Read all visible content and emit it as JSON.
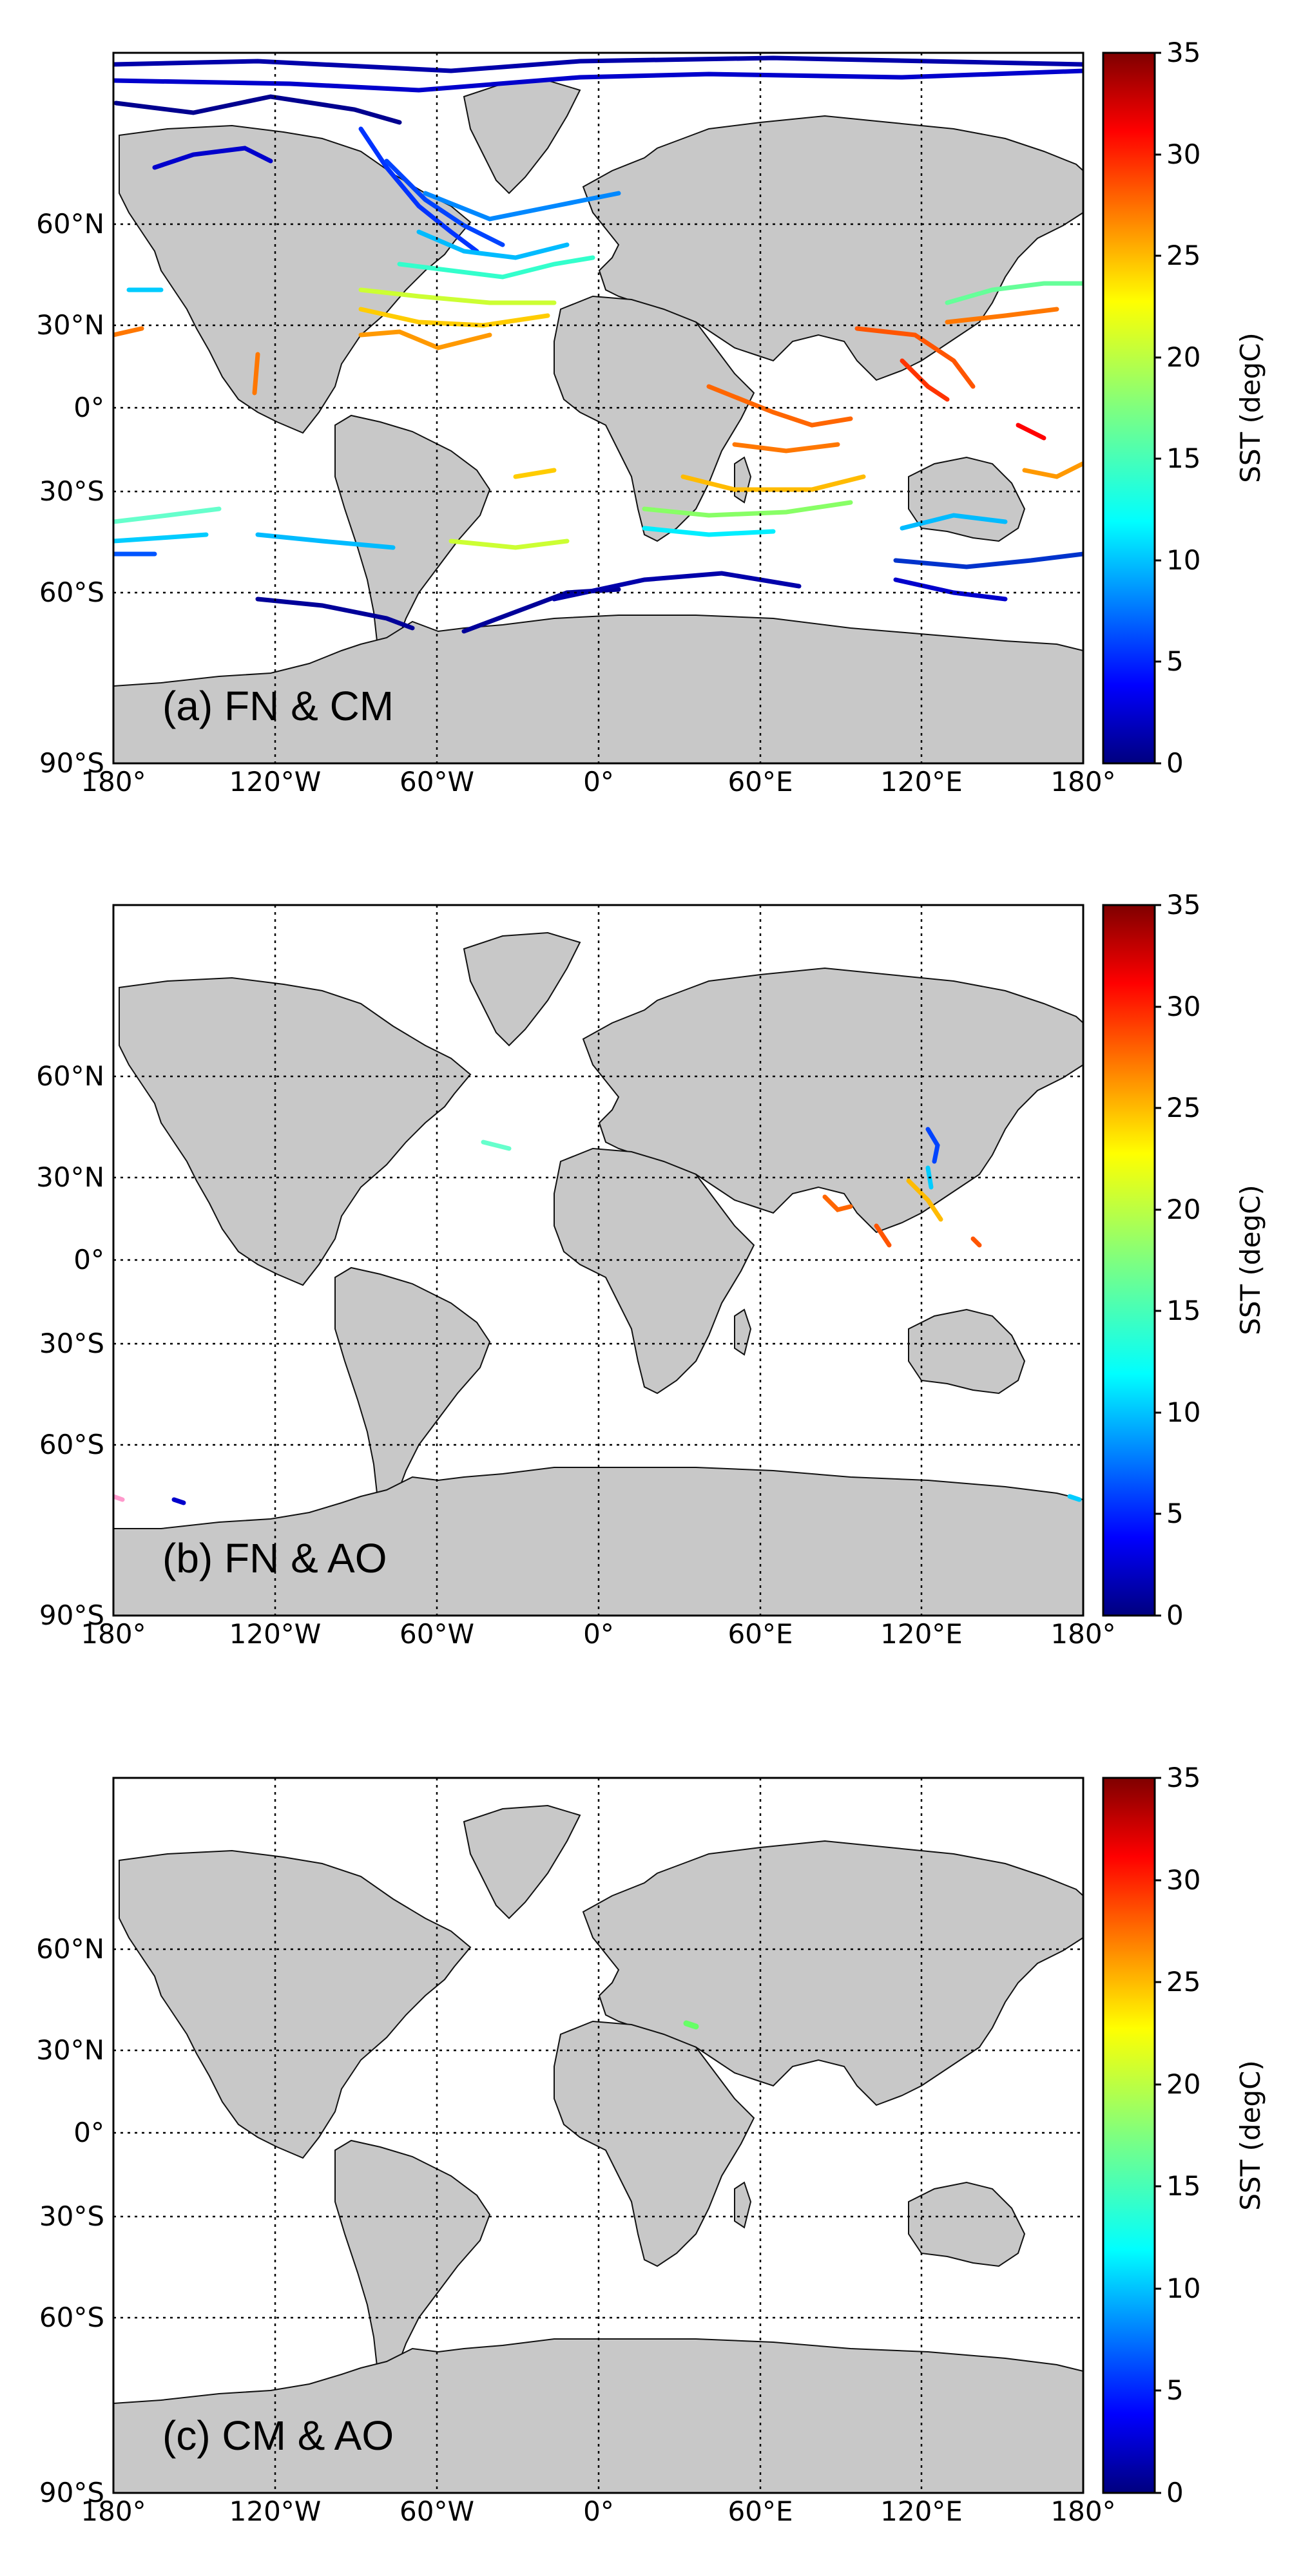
{
  "panels": [
    {
      "label": "(a) FN & CM"
    },
    {
      "label": "(b) FN & AO"
    },
    {
      "label": "(c) CM & AO"
    }
  ],
  "axes": {
    "lat_labels": [
      "60°N",
      "30°N",
      "0°",
      "30°S",
      "60°S",
      "90°S"
    ],
    "lon_labels": [
      "180°",
      "120°W",
      "60°W",
      "0°",
      "60°E",
      "120°E",
      "180°"
    ]
  },
  "colorbar": {
    "label": "SST (degC)",
    "ticks": [
      "35",
      "30",
      "25",
      "20",
      "15",
      "10",
      "5",
      "0"
    ],
    "range": [
      0,
      35
    ],
    "colormap": "jet",
    "colors": [
      "#00007f",
      "#0000ff",
      "#007fff",
      "#00ffff",
      "#7fff7f",
      "#ffff00",
      "#ff7f00",
      "#ff0000",
      "#7f0000"
    ]
  },
  "colors": {
    "land": "#c8c8c8",
    "coast": "#111111",
    "ocean": "#ffffff",
    "grid": "#000000"
  }
}
